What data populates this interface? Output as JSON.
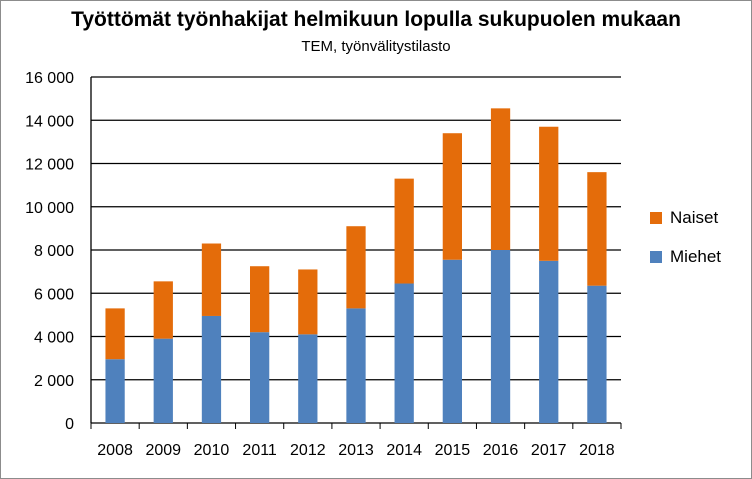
{
  "chart_data": {
    "type": "bar",
    "stacked": true,
    "title": "Työttömät työnhakijat helmikuun lopulla sukupuolen mukaan",
    "subtitle": "TEM, työnvälitystilasto",
    "categories": [
      "2008",
      "2009",
      "2010",
      "2011",
      "2012",
      "2013",
      "2014",
      "2015",
      "2016",
      "2017",
      "2018"
    ],
    "series": [
      {
        "name": "Miehet",
        "color": "#4f81bd",
        "values": [
          2950,
          3900,
          4950,
          4200,
          4100,
          5300,
          6450,
          7550,
          8000,
          7500,
          6350
        ]
      },
      {
        "name": "Naiset",
        "color": "#e46c0a",
        "values": [
          2350,
          2650,
          3350,
          3050,
          3000,
          3800,
          4850,
          5850,
          6550,
          6200,
          5250
        ]
      }
    ],
    "ylim": [
      0,
      16000
    ],
    "yticks": [
      0,
      2000,
      4000,
      6000,
      8000,
      10000,
      12000,
      14000,
      16000
    ],
    "ytick_labels": [
      "0",
      "2 000",
      "4 000",
      "6 000",
      "8 000",
      "10 000",
      "12 000",
      "14 000",
      "16 000"
    ],
    "grid": true,
    "legend_position": "right"
  }
}
